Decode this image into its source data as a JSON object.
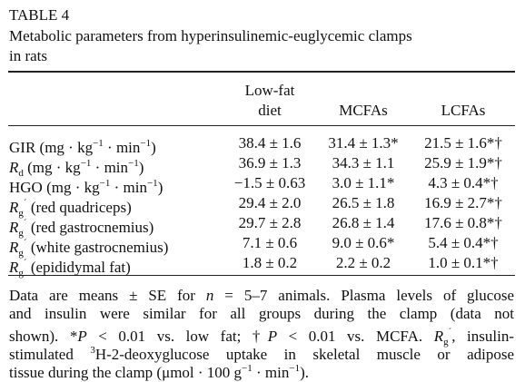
{
  "header": {
    "label": "TABLE 4",
    "caption": [
      "Metabolic parameters from hyperinsulinemic-euglycemic clamps",
      "in rats"
    ]
  },
  "table": {
    "columns": [
      [
        "Low-fat",
        "diet"
      ],
      [
        "MCFAs"
      ],
      [
        "LCFAs"
      ]
    ],
    "rows": [
      {
        "label": [
          "GIR (mg · kg",
          {
            "text": "−1",
            "style": "sup"
          },
          " · min",
          {
            "text": "−1",
            "style": "sup"
          },
          ")"
        ],
        "cells": [
          "38.4 ± 1.6",
          "31.4 ± 1.3*",
          "21.5 ± 1.6*†"
        ]
      },
      {
        "label": [
          {
            "text": "R",
            "style": "i"
          },
          {
            "text": "d",
            "style": "sub"
          },
          " (mg · kg",
          {
            "text": "−1",
            "style": "sup"
          },
          " · min",
          {
            "text": "−1",
            "style": "sup"
          },
          ")"
        ],
        "cells": [
          "36.9 ± 1.3",
          "34.3 ± 1.1",
          "25.9 ± 1.9*†"
        ]
      },
      {
        "label": [
          "HGO (mg · kg",
          {
            "text": "−1",
            "style": "sup"
          },
          " · min",
          {
            "text": "−1",
            "style": "sup"
          },
          ")"
        ],
        "cells": [
          "−1.5 ± 0.63",
          "3.0 ± 1.1*",
          "4.3 ± 0.4*†"
        ]
      },
      {
        "label": [
          {
            "text": "R",
            "style": "i"
          },
          {
            "text": "g",
            "style": "sub"
          },
          {
            "text": "´",
            "style": "sup"
          },
          " (red quadriceps)"
        ],
        "cells": [
          "29.4 ± 2.0",
          "26.5 ± 1.8",
          "16.9 ± 2.7*†"
        ]
      },
      {
        "label": [
          {
            "text": "R",
            "style": "i"
          },
          {
            "text": "g",
            "style": "sub"
          },
          {
            "text": "´",
            "style": "sup"
          },
          " (red gastrocnemius)"
        ],
        "cells": [
          "29.7 ± 2.8",
          "26.8 ± 1.4",
          "17.6 ± 0.8*†"
        ]
      },
      {
        "label": [
          {
            "text": "R",
            "style": "i"
          },
          {
            "text": "g",
            "style": "sub"
          },
          {
            "text": "´",
            "style": "sup"
          },
          " (white gastrocnemius)"
        ],
        "cells": [
          "7.1 ± 0.6",
          "9.0 ± 0.6*",
          "5.4 ± 0.4*†"
        ]
      },
      {
        "label": [
          {
            "text": "R",
            "style": "i"
          },
          {
            "text": "g",
            "style": "sub"
          },
          {
            "text": "´",
            "style": "sup"
          },
          " (epididymal fat)"
        ],
        "cells": [
          "1.8 ± 0.2",
          "2.2 ± 0.2",
          "1.0 ± 0.1*†"
        ]
      }
    ]
  },
  "footnote": [
    [
      "Data are means ± SE for ",
      {
        "text": "n",
        "style": "i"
      },
      " = 5–7 animals. Plasma levels of glucose"
    ],
    [
      "and insulin were similar for all groups during the clamp (data not"
    ],
    [
      "shown). *",
      {
        "text": "P",
        "style": "i"
      },
      " < 0.01 vs. low fat; †",
      {
        "text": "P",
        "style": "i"
      },
      " < 0.01 vs. MCFA. ",
      {
        "text": "R",
        "style": "i"
      },
      {
        "text": "g",
        "style": "sub"
      },
      {
        "text": "´",
        "style": "sup"
      },
      ", insulin-"
    ],
    [
      "stimulated ",
      {
        "text": "3",
        "style": "sup"
      },
      "H-2-deoxyglucose uptake in skeletal muscle or adipose"
    ],
    [
      "tissue during the clamp (μmol · 100 g",
      {
        "text": "−1",
        "style": "sup"
      },
      " · min",
      {
        "text": "−1",
        "style": "sup"
      },
      ")."
    ]
  ]
}
